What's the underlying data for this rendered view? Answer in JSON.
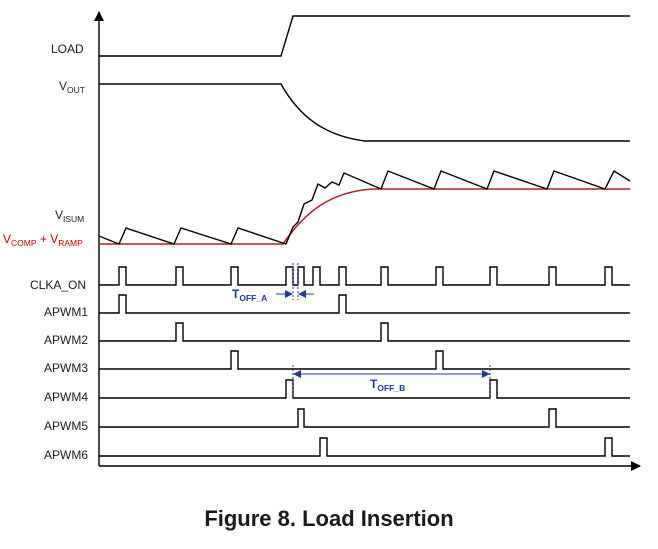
{
  "labels": {
    "load": "LOAD",
    "vout": {
      "main": "V",
      "sub": "OUT"
    },
    "visum": {
      "main": "V",
      "sub": "ISUM"
    },
    "vcomp": {
      "main1": "V",
      "sub1": "COMP",
      "plus": " + ",
      "main2": "V",
      "sub2": "RAMP"
    },
    "clka_on": "CLKA_ON",
    "apwm1": "APWM1",
    "apwm2": "APWM2",
    "apwm3": "APWM3",
    "apwm4": "APWM4",
    "apwm5": "APWM5",
    "apwm6": "APWM6"
  },
  "annotations": {
    "toff_a": {
      "main": "T",
      "sub": "OFF_A"
    },
    "toff_b": {
      "main": "T",
      "sub": "OFF_B"
    }
  },
  "caption": "Figure 8. Load Insertion",
  "colors": {
    "signal": "#000000",
    "threshold": "#b22222",
    "annotation": "#1f3a93"
  }
}
